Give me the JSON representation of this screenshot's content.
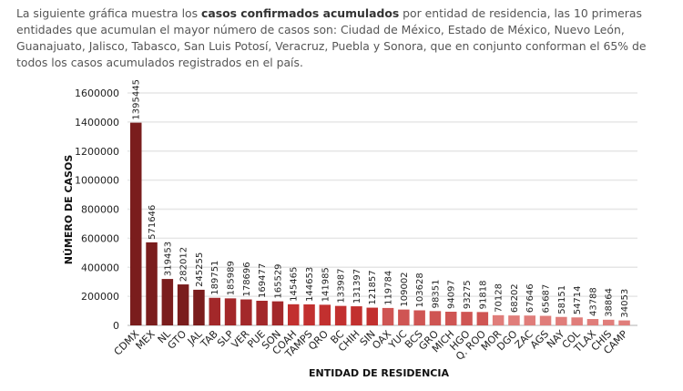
{
  "intro": {
    "before": "La siguiente gráfica muestra los ",
    "bold": "casos confirmados acumulados",
    "after": " por entidad de residencia, las 10 primeras entidades que acumulan el mayor número de casos son: Ciudad de México, Estado de México, Nuevo León, Guanajuato, Jalisco, Tabasco, San Luis Potosí, Veracruz, Puebla y Sonora, que en conjunto conforman el 65% de todos los casos acumulados registrados en el país."
  },
  "chart_data": {
    "type": "bar",
    "title": "",
    "xlabel": "ENTIDAD DE RESIDENCIA",
    "ylabel": "NÚMERO DE CASOS",
    "ylim": [
      0,
      1600000
    ],
    "yticks": [
      0,
      200000,
      400000,
      600000,
      800000,
      1000000,
      1200000,
      1400000,
      1600000
    ],
    "grid": true,
    "categories": [
      "CDMX",
      "MEX",
      "NL",
      "GTO",
      "JAL",
      "TAB",
      "SLP",
      "VER",
      "PUE",
      "SON",
      "COAH",
      "TAMPS",
      "QRO",
      "BC",
      "CHIH",
      "SIN",
      "OAX",
      "YUC",
      "BCS",
      "GRO",
      "MICH",
      "HGO",
      "Q. ROO",
      "MOR",
      "DGO",
      "ZAC",
      "AGS",
      "NAY",
      "COL",
      "TLAX",
      "CHIS",
      "CAMP"
    ],
    "values": [
      1395445,
      571646,
      319453,
      282012,
      245255,
      189751,
      185989,
      178696,
      169477,
      165529,
      145465,
      144653,
      141985,
      133987,
      131397,
      121857,
      119784,
      109002,
      103628,
      98351,
      94097,
      93275,
      91818,
      70128,
      68202,
      67646,
      65687,
      58151,
      54714,
      43788,
      38864,
      34053
    ],
    "colors": [
      "#7a1d1d",
      "#7a1d1d",
      "#7a1d1d",
      "#7a1d1d",
      "#7a1d1d",
      "#a3282a",
      "#a3282a",
      "#a3282a",
      "#a3282a",
      "#a3282a",
      "#c2302f",
      "#c2302f",
      "#c2302f",
      "#c2302f",
      "#c2302f",
      "#c2302f",
      "#cf5553",
      "#cf5553",
      "#cf5553",
      "#cf5553",
      "#cf5553",
      "#cf5553",
      "#cf5553",
      "#e07d7a",
      "#e07d7a",
      "#e07d7a",
      "#e07d7a",
      "#e07d7a",
      "#e07d7a",
      "#e07d7a",
      "#e07d7a",
      "#e07d7a"
    ]
  }
}
